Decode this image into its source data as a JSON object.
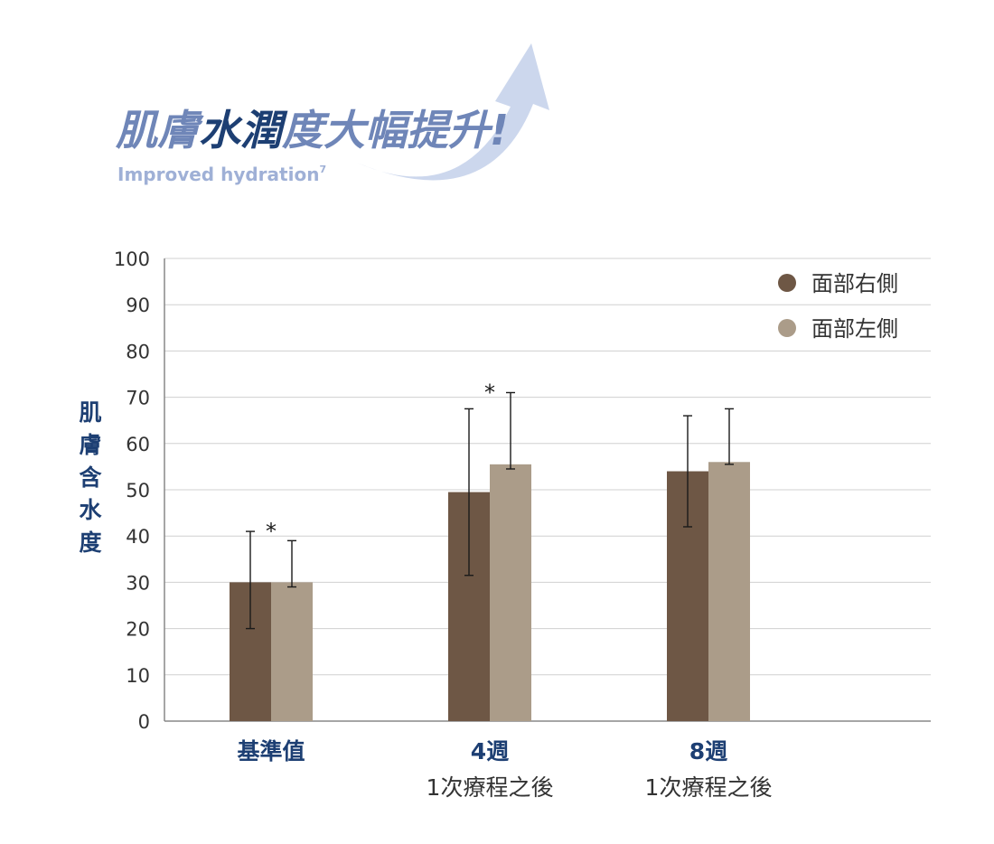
{
  "header": {
    "title_parts": [
      {
        "text": "肌膚",
        "color": "#6f86b8"
      },
      {
        "text": "水潤",
        "color": "#1d3f73"
      },
      {
        "text": "度大幅提升!",
        "color": "#6f86b8"
      }
    ],
    "subtitle": "Improved hydration",
    "subtitle_superscript": "7"
  },
  "colors": {
    "series_right": "#6e5745",
    "series_left": "#ab9c89",
    "axis_label": "#1d3f73",
    "grid": "#d0d0d0",
    "arrow": "#c3d0ea",
    "title_light": "#6f86b8",
    "title_dark": "#1d3f73"
  },
  "chart_data": {
    "type": "bar",
    "ylabel": "肌膚含水度",
    "ylim": [
      0,
      100
    ],
    "yticks": [
      0,
      10,
      20,
      30,
      40,
      50,
      60,
      70,
      80,
      90,
      100
    ],
    "grid": true,
    "legend_position": "top-right",
    "categories": [
      {
        "line1": "基準值",
        "line2": ""
      },
      {
        "line1": "4週",
        "line2": "1次療程之後"
      },
      {
        "line1": "8週",
        "line2": "1次療程之後"
      }
    ],
    "series": [
      {
        "name": "面部右側",
        "values": [
          30,
          49.5,
          54
        ],
        "error_low": [
          20,
          31.5,
          42
        ],
        "error_high": [
          41,
          67.5,
          66
        ]
      },
      {
        "name": "面部左側",
        "values": [
          30,
          55.5,
          56
        ],
        "error_low": [
          29,
          54.5,
          55.5
        ],
        "error_high": [
          39,
          71,
          67.5
        ]
      }
    ],
    "annotations": [
      "*",
      "*",
      ""
    ]
  }
}
